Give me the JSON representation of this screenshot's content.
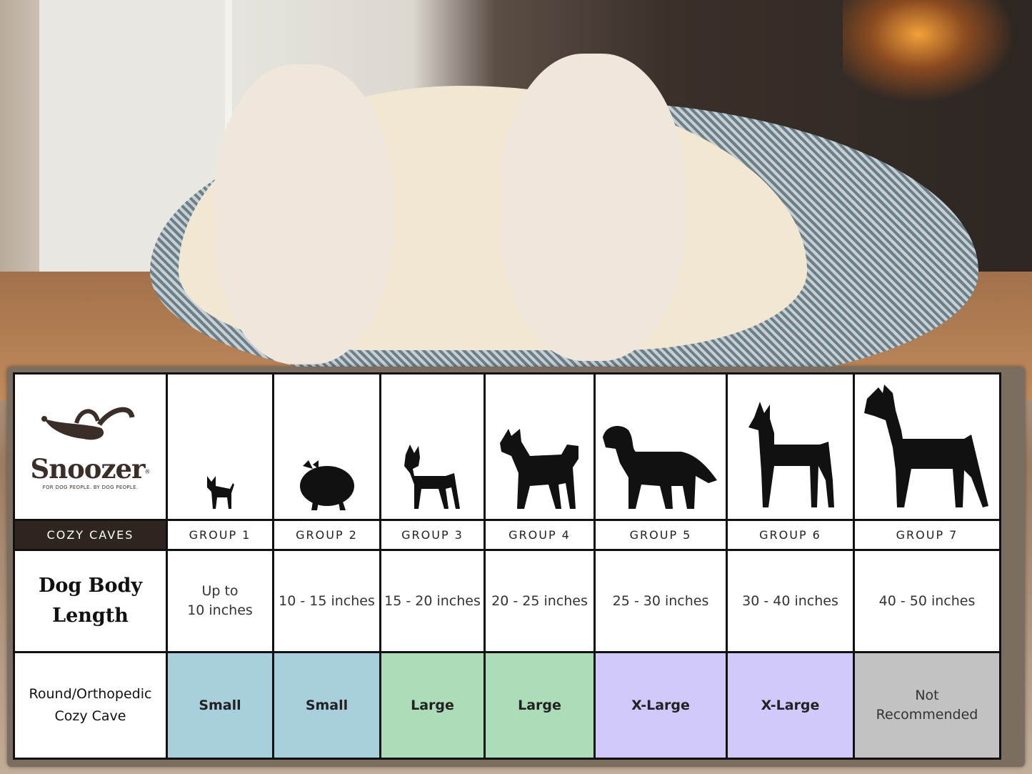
{
  "brand": {
    "name": "Snoozer",
    "registered": "®",
    "tagline": "FOR DOG PEOPLE. BY DOG PEOPLE."
  },
  "table": {
    "product_label": "COZY CAVES",
    "groups": [
      {
        "label": "GROUP 1",
        "silhouette": "chihuahua-icon",
        "length": "Up to\n10 inches",
        "fit": "Small",
        "color": "#a9cfdd"
      },
      {
        "label": "GROUP 2",
        "silhouette": "pomeranian-icon",
        "length": "10 - 15 inches",
        "fit": "Small",
        "color": "#a9cfdd"
      },
      {
        "label": "GROUP 3",
        "silhouette": "boston-terrier-icon",
        "length": "15 - 20 inches",
        "fit": "Large",
        "color": "#acdcb8"
      },
      {
        "label": "GROUP 4",
        "silhouette": "shiba-icon",
        "length": "20 - 25 inches",
        "fit": "Large",
        "color": "#acdcb8"
      },
      {
        "label": "GROUP 5",
        "silhouette": "golden-retriever-icon",
        "length": "25 - 30 inches",
        "fit": "X-Large",
        "color": "#d1c8fb"
      },
      {
        "label": "GROUP 6",
        "silhouette": "doberman-icon",
        "length": "30 - 40 inches",
        "fit": "X-Large",
        "color": "#d1c8fb"
      },
      {
        "label": "GROUP 7",
        "silhouette": "great-dane-icon",
        "length": "40 - 50 inches",
        "fit": "Not\nRecommended",
        "color": "#c2c2c2"
      }
    ],
    "row_length_label": "Dog Body Length",
    "row_fit_label": "Round/Orthopedic Cozy Cave"
  }
}
